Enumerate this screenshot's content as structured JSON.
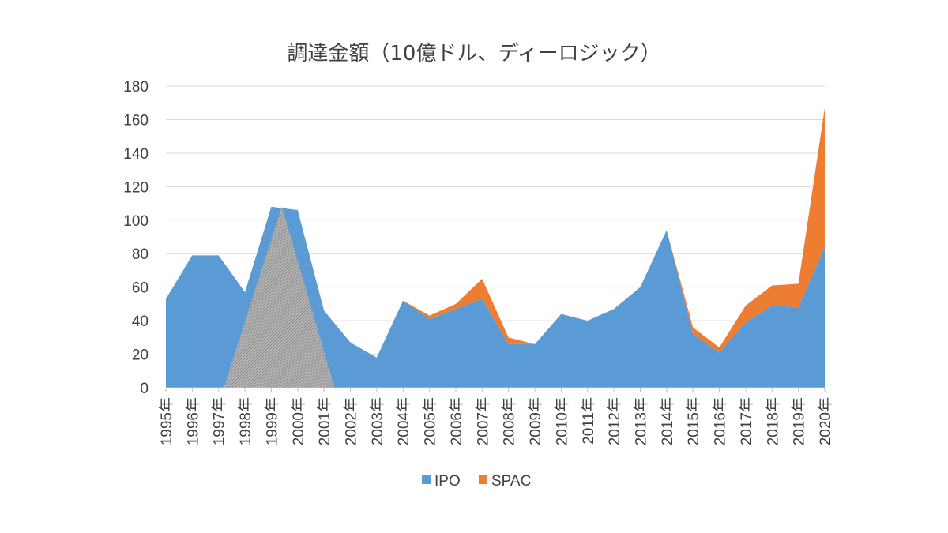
{
  "chart_data": {
    "type": "area",
    "stacked": true,
    "title": "調達金額（10億ドル、ディーロジック）",
    "xlabel": "",
    "ylabel": "",
    "ylim": [
      0,
      180
    ],
    "yticks": [
      0,
      20,
      40,
      60,
      80,
      100,
      120,
      140,
      160,
      180
    ],
    "grid": true,
    "legend_position": "bottom",
    "categories": [
      "1995年",
      "1996年",
      "1997年",
      "1998年",
      "1999年",
      "2000年",
      "2001年",
      "2002年",
      "2003年",
      "2004年",
      "2005年",
      "2006年",
      "2007年",
      "2008年",
      "2009年",
      "2010年",
      "2011年",
      "2012年",
      "2013年",
      "2014年",
      "2015年",
      "2016年",
      "2017年",
      "2018年",
      "2019年",
      "2020年"
    ],
    "series": [
      {
        "name": "IPO",
        "color": "#5b9bd5",
        "values": [
          53,
          79,
          79,
          57,
          108,
          106,
          46,
          27,
          18,
          52,
          41,
          47,
          53,
          26,
          26,
          44,
          40,
          47,
          60,
          94,
          32,
          21,
          39,
          49,
          48,
          84
        ]
      },
      {
        "name": "SPAC",
        "color": "#ed7d31",
        "values": [
          0,
          0,
          0,
          0,
          0,
          0,
          0,
          0,
          0,
          0,
          2,
          3,
          12,
          4,
          0,
          0,
          0,
          0,
          0,
          0,
          4,
          3,
          10,
          12,
          14,
          83
        ]
      }
    ],
    "annotation": {
      "type": "hatched-triangle",
      "color": "#a6a6a6",
      "x_start": 2.2,
      "x_peak": 4.4,
      "x_end": 6.4,
      "y_peak": 108
    }
  }
}
